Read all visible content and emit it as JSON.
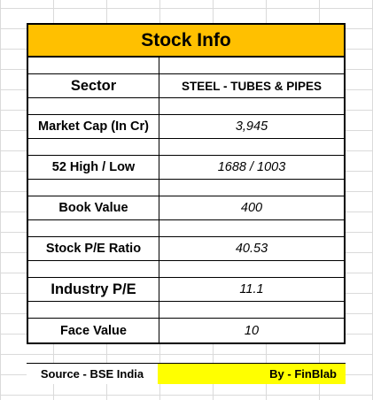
{
  "title": "Stock Info",
  "rows": [
    {
      "label": "Sector",
      "value": "STEEL - TUBES & PIPES"
    },
    {
      "label": "Market Cap (In Cr)",
      "value": "3,945"
    },
    {
      "label": "52 High / Low",
      "value": "1688 / 1003"
    },
    {
      "label": "Book Value",
      "value": "400"
    },
    {
      "label": "Stock P/E Ratio",
      "value": "40.53"
    },
    {
      "label": "Industry P/E",
      "value": "11.1"
    },
    {
      "label": "Face Value",
      "value": "10"
    }
  ],
  "footer": {
    "source": "Source - BSE India",
    "by": "By - FinBlab"
  },
  "colors": {
    "title_bg": "#ffc000",
    "footer_highlight": "#ffff00"
  }
}
